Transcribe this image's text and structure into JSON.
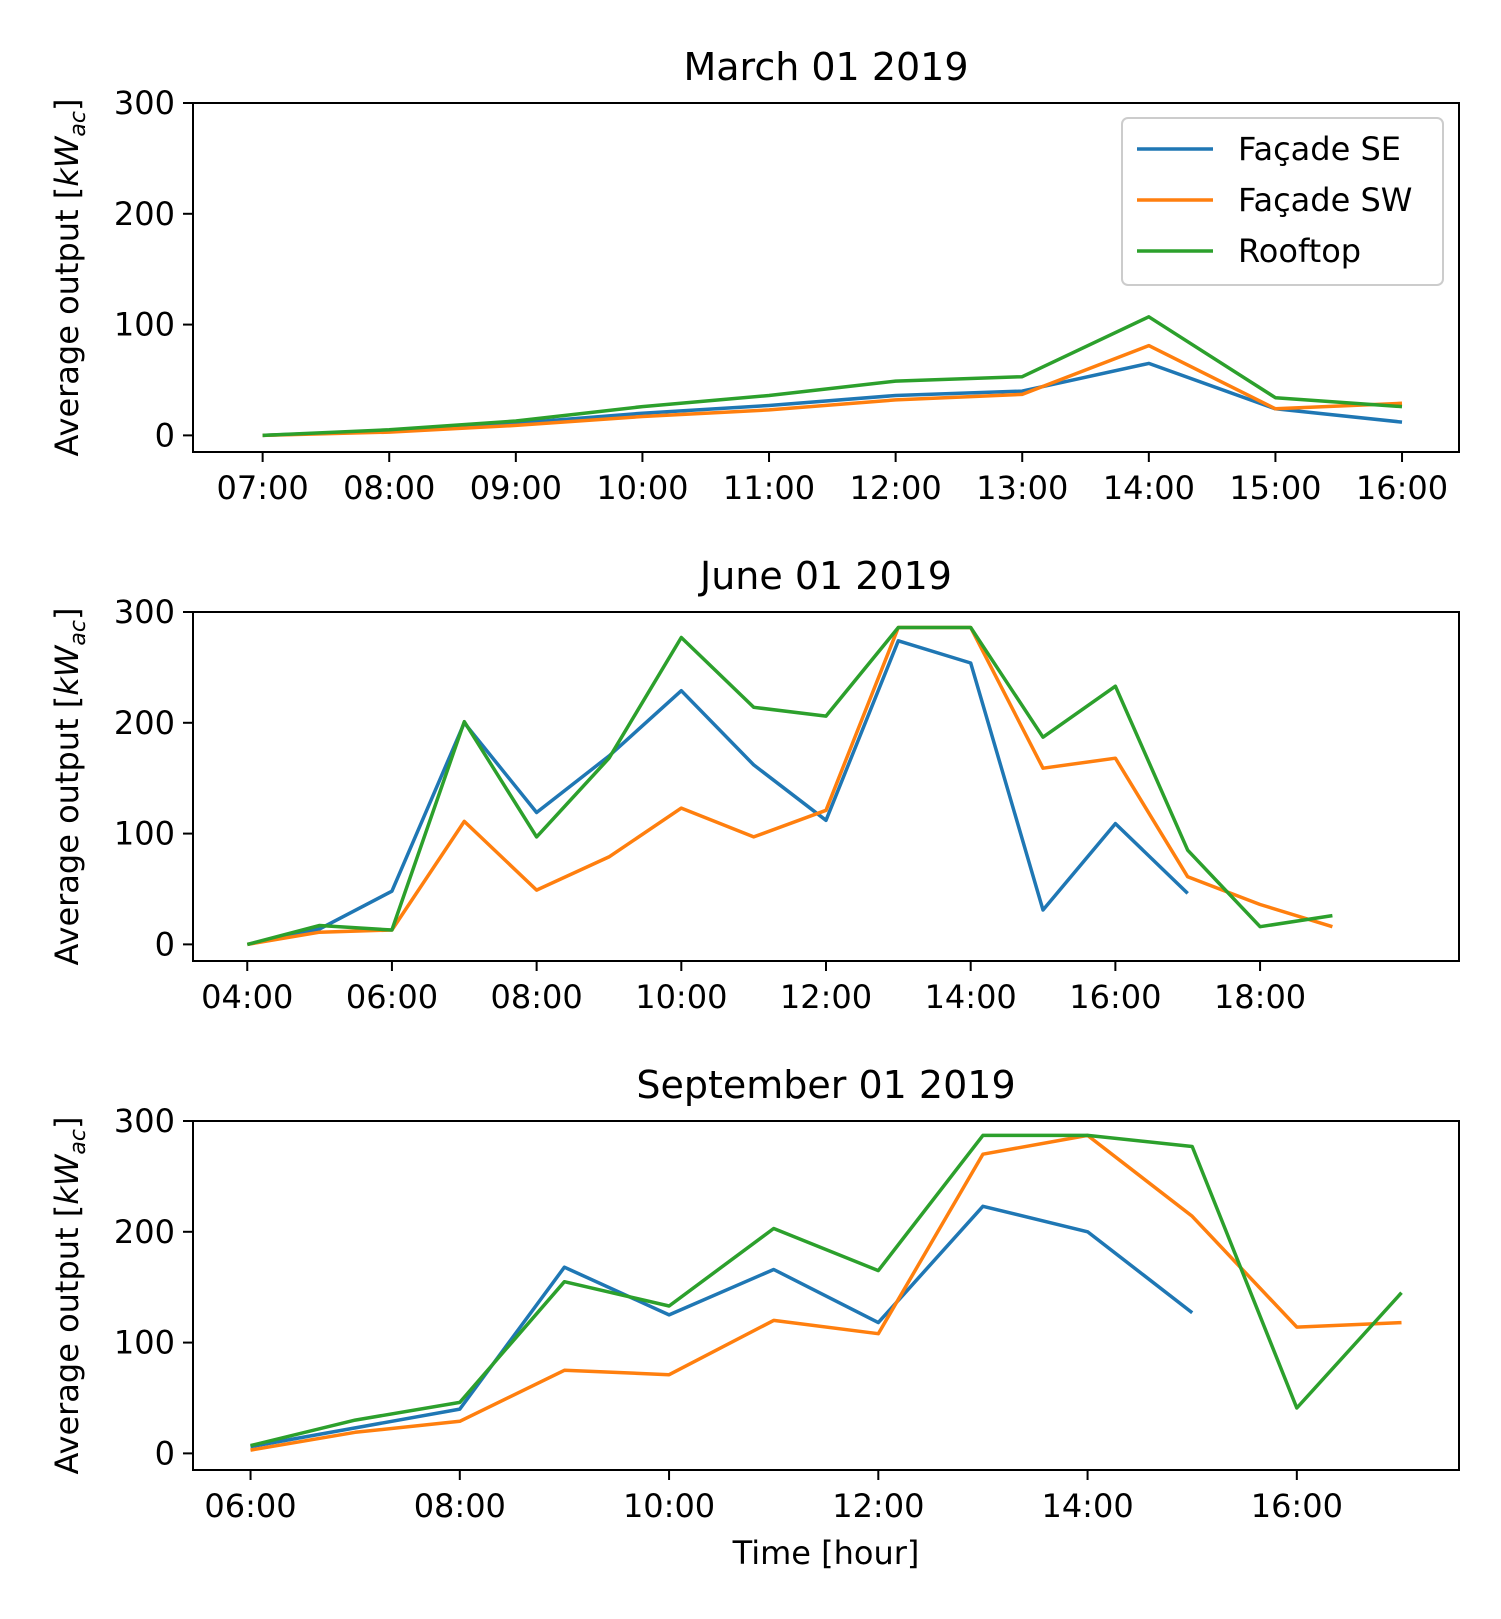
{
  "figure": {
    "xlabel": "Time [hour]",
    "ylabel_main": "Average output [",
    "ylabel_unit": "kW",
    "ylabel_sub": "ac",
    "ylabel_close": "]"
  },
  "legend": {
    "entries": [
      {
        "label": "Façade SE",
        "color": "#1f77b4"
      },
      {
        "label": "Façade SW",
        "color": "#ff7f0e"
      },
      {
        "label": "Rooftop",
        "color": "#2ca02c"
      }
    ]
  },
  "chart_data": [
    {
      "type": "line",
      "title": "March 01 2019",
      "xlabel": "",
      "ylabel": "Average output [kW_ac]",
      "x_unit": "hour",
      "x": [
        7,
        8,
        9,
        10,
        11,
        12,
        13,
        14,
        15,
        16
      ],
      "xlim": [
        6.45,
        16.45
      ],
      "xticks": [
        7,
        8,
        9,
        10,
        11,
        12,
        13,
        14,
        15,
        16
      ],
      "xtick_labels": [
        "07:00",
        "08:00",
        "09:00",
        "10:00",
        "11:00",
        "12:00",
        "13:00",
        "14:00",
        "15:00",
        "16:00"
      ],
      "ylim": [
        -15,
        300
      ],
      "yticks": [
        0,
        100,
        200,
        300
      ],
      "grid": false,
      "legend": "top-right",
      "series": [
        {
          "name": "Façade SE",
          "color": "#1f77b4",
          "values": [
            0,
            4,
            11,
            20,
            27,
            36,
            40,
            65,
            24,
            12
          ]
        },
        {
          "name": "Façade SW",
          "color": "#ff7f0e",
          "values": [
            0,
            3,
            9,
            17,
            23,
            32,
            37,
            81,
            24,
            29
          ]
        },
        {
          "name": "Rooftop",
          "color": "#2ca02c",
          "values": [
            0,
            5,
            13,
            26,
            36,
            49,
            53,
            107,
            34,
            26
          ]
        }
      ]
    },
    {
      "type": "line",
      "title": "June 01 2019",
      "xlabel": "",
      "ylabel": "Average output [kW_ac]",
      "x_unit": "hour",
      "x": [
        4,
        5,
        6,
        7,
        8,
        9,
        10,
        11,
        12,
        13,
        14,
        15,
        16,
        17,
        18,
        19
      ],
      "xlim": [
        3.25,
        20.75
      ],
      "xticks": [
        4,
        6,
        8,
        10,
        12,
        14,
        16,
        18
      ],
      "xtick_labels": [
        "04:00",
        "06:00",
        "08:00",
        "10:00",
        "12:00",
        "14:00",
        "16:00",
        "18:00"
      ],
      "ylim": [
        -15,
        300
      ],
      "yticks": [
        0,
        100,
        200,
        300
      ],
      "grid": false,
      "series": [
        {
          "name": "Façade SE",
          "color": "#1f77b4",
          "values": [
            0,
            14,
            48,
            200,
            119,
            170,
            229,
            162,
            112,
            274,
            254,
            31,
            109,
            46,
            null,
            null
          ]
        },
        {
          "name": "Façade SW",
          "color": "#ff7f0e",
          "values": [
            0,
            11,
            13,
            111,
            49,
            79,
            123,
            97,
            121,
            286,
            286,
            159,
            168,
            61,
            36,
            16
          ]
        },
        {
          "name": "Rooftop",
          "color": "#2ca02c",
          "values": [
            0,
            17,
            13,
            201,
            97,
            168,
            277,
            214,
            206,
            286,
            286,
            187,
            233,
            85,
            16,
            26
          ]
        }
      ]
    },
    {
      "type": "line",
      "title": "September 01 2019",
      "xlabel": "Time [hour]",
      "ylabel": "Average output [kW_ac]",
      "x_unit": "hour",
      "x": [
        6,
        7,
        8,
        9,
        10,
        11,
        12,
        13,
        14,
        15,
        16,
        17
      ],
      "xlim": [
        5.45,
        17.55
      ],
      "xticks": [
        6,
        8,
        10,
        12,
        14,
        16
      ],
      "xtick_labels": [
        "06:00",
        "08:00",
        "10:00",
        "12:00",
        "14:00",
        "16:00"
      ],
      "ylim": [
        -15,
        300
      ],
      "yticks": [
        0,
        100,
        200,
        300
      ],
      "grid": false,
      "series": [
        {
          "name": "Façade SE",
          "color": "#1f77b4",
          "values": [
            6,
            23,
            40,
            168,
            125,
            166,
            118,
            223,
            200,
            127,
            null,
            null
          ]
        },
        {
          "name": "Façade SW",
          "color": "#ff7f0e",
          "values": [
            3,
            19,
            29,
            75,
            71,
            120,
            108,
            270,
            287,
            214,
            114,
            118
          ]
        },
        {
          "name": "Rooftop",
          "color": "#2ca02c",
          "values": [
            7,
            30,
            46,
            155,
            133,
            203,
            165,
            287,
            287,
            277,
            41,
            145
          ]
        }
      ]
    }
  ]
}
